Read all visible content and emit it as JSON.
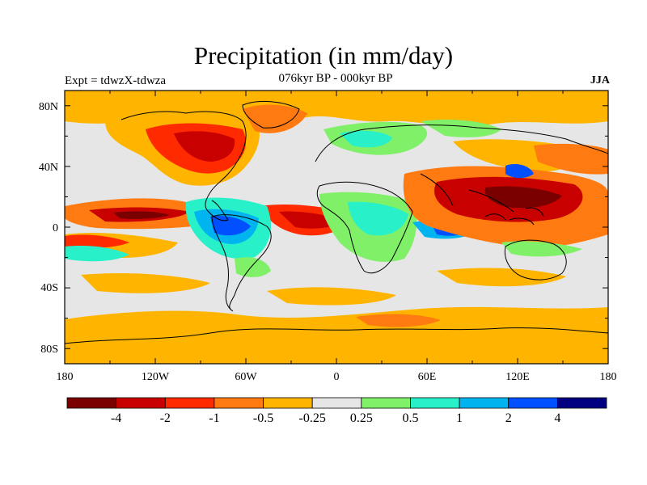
{
  "title": "Precipitation (in mm/day)",
  "left_label": "Expt = tdwzX-tdwza",
  "center_label": "076kyr BP - 000kyr BP",
  "right_label": "JJA",
  "x_ticks": [
    "180",
    "120W",
    "60W",
    "0",
    "60E",
    "120E",
    "180"
  ],
  "y_ticks": [
    "80N",
    "40N",
    "0",
    "40S",
    "80S"
  ],
  "colorbar": {
    "colors": [
      "#7a0000",
      "#c80000",
      "#ff2a00",
      "#ff7a10",
      "#ffb400",
      "#e6e6e6",
      "#80f068",
      "#28f0c8",
      "#00b4f0",
      "#0050ff",
      "#000080"
    ],
    "labels": [
      "-4",
      "-2",
      "-1",
      "-0.5",
      "-0.25",
      "0.25",
      "0.5",
      "1",
      "2",
      "4"
    ]
  }
}
